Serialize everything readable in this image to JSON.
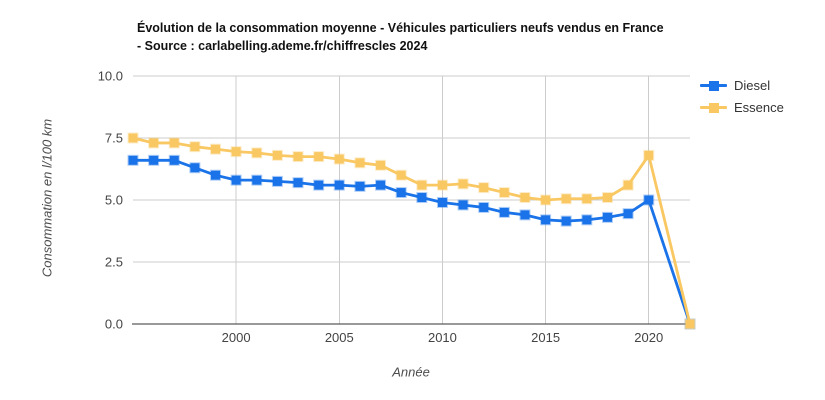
{
  "title": {
    "line1": "Évolution de la consommation moyenne - Véhicules particuliers neufs vendus en France",
    "line2": "- Source : carlabelling.ademe.fr/chiffrescles 2024"
  },
  "colors": {
    "diesel": "#1A73E8",
    "essence": "#F9C863",
    "grid": "#CCCCCC",
    "axis": "#333333",
    "tick_text": "#444444",
    "axis_title_text": "#4D4D4D",
    "title_text": "#111111",
    "legend_text": "#333333",
    "background": "#FFFFFF"
  },
  "chart_data": {
    "type": "line",
    "title": "Évolution de la consommation moyenne - Véhicules particuliers neufs vendus en France - Source : carlabelling.ademe.fr/chiffrescles 2024",
    "xlabel": "Année",
    "ylabel": "Consommation en l/100 km",
    "xlim": [
      1995,
      2022
    ],
    "ylim": [
      0,
      10
    ],
    "x_ticks": [
      2000,
      2005,
      2010,
      2015,
      2020
    ],
    "x_tick_labels": [
      "2000",
      "2005",
      "2010",
      "2015",
      "2020"
    ],
    "y_ticks": [
      0,
      2.5,
      5,
      7.5,
      10
    ],
    "y_tick_labels": [
      "0.0",
      "2.5",
      "5.0",
      "7.5",
      "10.0"
    ],
    "grid": true,
    "legend_position": "right",
    "marker": "square",
    "x": [
      1995,
      1996,
      1997,
      1998,
      1999,
      2000,
      2001,
      2002,
      2003,
      2004,
      2005,
      2006,
      2007,
      2008,
      2009,
      2010,
      2011,
      2012,
      2013,
      2014,
      2015,
      2016,
      2017,
      2018,
      2019,
      2020,
      2022
    ],
    "series": [
      {
        "name": "Diesel",
        "color": "#1A73E8",
        "values": [
          6.6,
          6.6,
          6.6,
          6.3,
          6.0,
          5.8,
          5.8,
          5.75,
          5.7,
          5.6,
          5.6,
          5.55,
          5.6,
          5.3,
          5.1,
          4.9,
          4.8,
          4.7,
          4.5,
          4.4,
          4.2,
          4.15,
          4.2,
          4.3,
          4.45,
          5.0,
          0
        ]
      },
      {
        "name": "Essence",
        "color": "#F9C863",
        "values": [
          7.5,
          7.3,
          7.3,
          7.15,
          7.05,
          6.95,
          6.9,
          6.8,
          6.75,
          6.75,
          6.65,
          6.5,
          6.4,
          6.0,
          5.6,
          5.6,
          5.65,
          5.5,
          5.3,
          5.1,
          5.0,
          5.05,
          5.05,
          5.1,
          5.6,
          6.8,
          0
        ]
      }
    ]
  }
}
